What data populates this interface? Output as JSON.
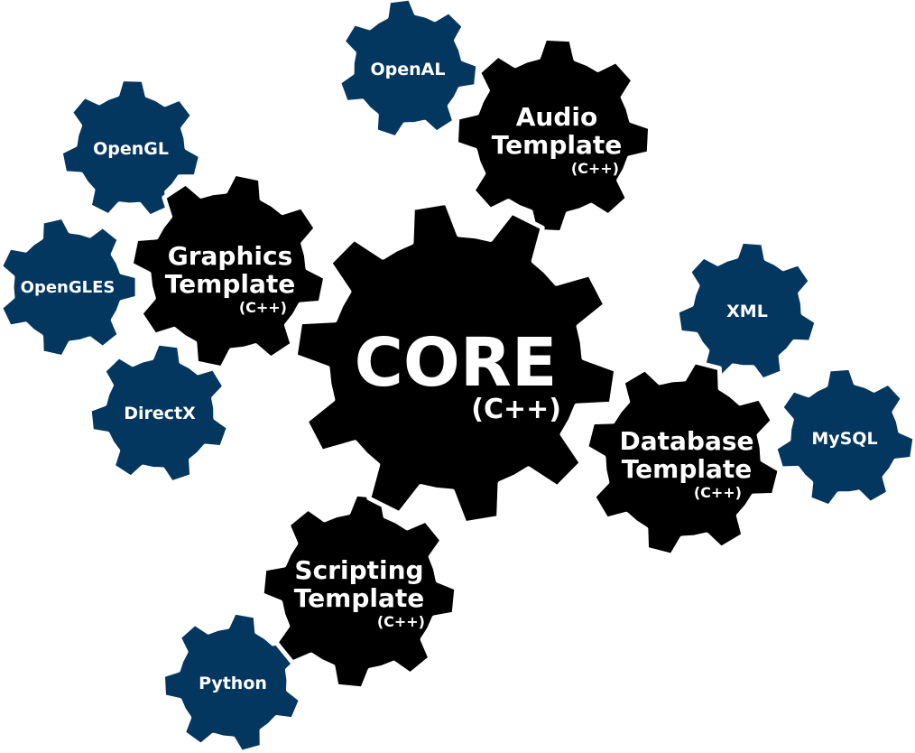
{
  "colors": {
    "background": "#ffffff",
    "template_gear": "#000000",
    "library_gear": "#04375f",
    "text": "#ffffff",
    "outline": "#ffffff"
  },
  "core": {
    "title": "CORE",
    "subtitle": "(C++)"
  },
  "templates": {
    "graphics": {
      "line1": "Graphics",
      "line2": "Template",
      "lang": "(C++)"
    },
    "audio": {
      "line1": "Audio",
      "line2": "Template",
      "lang": "(C++)"
    },
    "database": {
      "line1": "Database",
      "line2": "Template",
      "lang": "(C++)"
    },
    "scripting": {
      "line1": "Scripting",
      "line2": "Template",
      "lang": "(C++)"
    }
  },
  "libraries": {
    "opengl": "OpenGL",
    "opengles": "OpenGLES",
    "directx": "DirectX",
    "openal": "OpenAL",
    "xml": "XML",
    "mysql": "MySQL",
    "python": "Python"
  }
}
